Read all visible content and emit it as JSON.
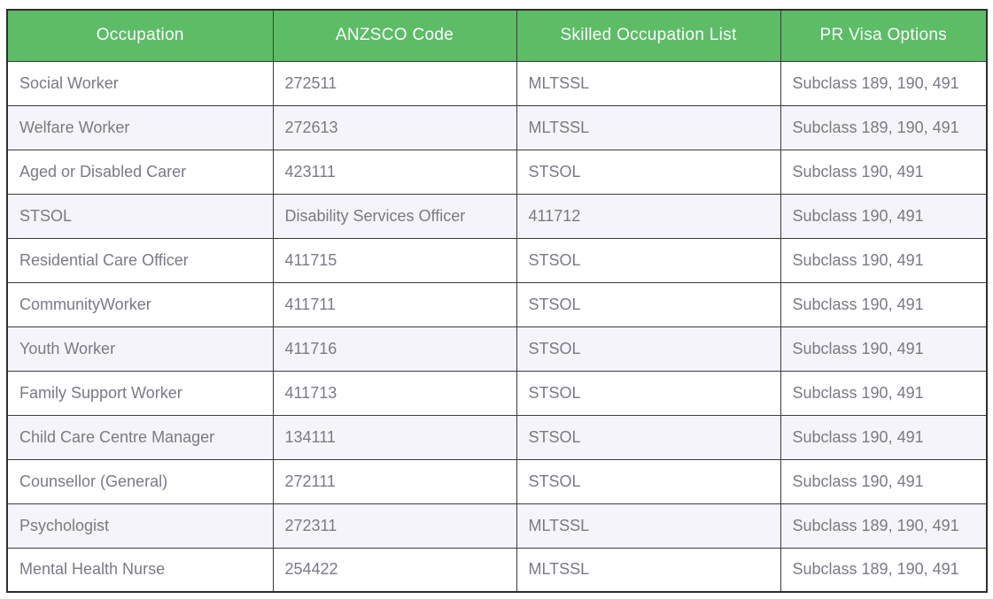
{
  "colors": {
    "header_bg": "#5cbd66",
    "header_text": "#ffffff",
    "body_text": "#7b7a84",
    "row_shade_bg": "#f5f4fb",
    "row_bg": "#ffffff",
    "cell_border": "#3b3b3b",
    "outer_border": "#2e2e2e"
  },
  "chart_data": {
    "type": "table",
    "columns": [
      "Occupation",
      "ANZSCO Code",
      "Skilled Occupation List",
      "PR Visa Options"
    ],
    "rows": [
      [
        "Social Worker",
        "272511",
        "MLTSSL",
        "Subclass 189, 190, 491"
      ],
      [
        "Welfare Worker",
        "272613",
        "MLTSSL",
        "Subclass 189, 190, 491"
      ],
      [
        "Aged or Disabled Carer",
        "423111",
        "STSOL",
        "Subclass 190, 491"
      ],
      [
        "STSOL",
        "Disability Services Officer",
        "411712",
        "Subclass 190, 491"
      ],
      [
        "Residential Care Officer",
        "411715",
        "STSOL",
        "Subclass 190, 491"
      ],
      [
        "CommunityWorker",
        "411711",
        "STSOL",
        "Subclass 190, 491"
      ],
      [
        "Youth Worker",
        "411716",
        "STSOL",
        "Subclass 190, 491"
      ],
      [
        "Family Support Worker",
        "411713",
        "STSOL",
        "Subclass 190, 491"
      ],
      [
        "Child Care Centre Manager",
        "134111",
        "STSOL",
        "Subclass 190, 491"
      ],
      [
        "Counsellor (General)",
        "272111",
        "STSOL",
        "Subclass 190, 491"
      ],
      [
        "Psychologist",
        "272311",
        "MLTSSL",
        "Subclass 189, 190, 491"
      ],
      [
        "Mental Health Nurse",
        "254422",
        "MLTSSL",
        "Subclass 189, 190, 491"
      ]
    ],
    "shaded_row_indexes": [
      1,
      3,
      6,
      8,
      10
    ],
    "layout": {
      "grid": "all-borders",
      "header_position": "top",
      "body_text_align": "left",
      "header_text_align": "center"
    }
  }
}
